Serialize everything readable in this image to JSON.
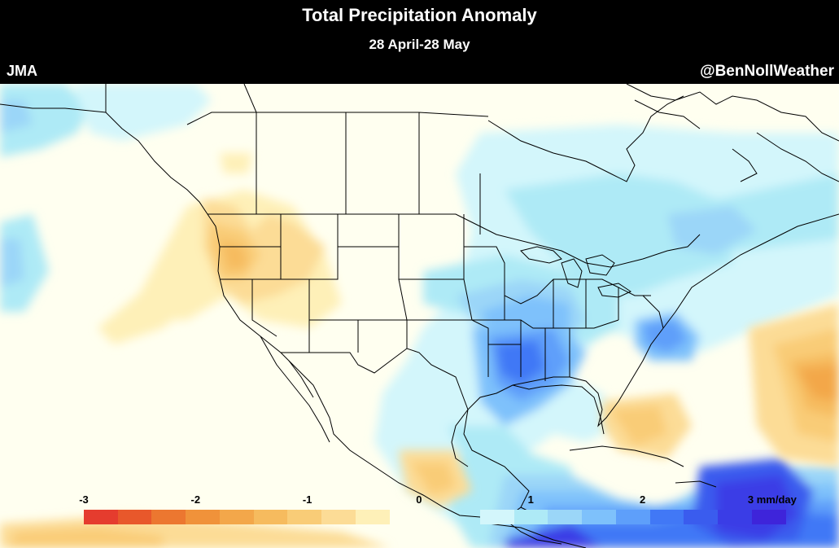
{
  "header": {
    "title": "Total Precipitation Anomaly",
    "subtitle": "28 April-28 May",
    "model": "JMA",
    "credit": "@BenNollWeather"
  },
  "colors": {
    "background": "#fffff0",
    "dry": [
      "#e53c2e",
      "#e8582b",
      "#ec7730",
      "#f0923a",
      "#f3a74a",
      "#f6bb5e",
      "#f9cc77",
      "#fcdc96",
      "#fef0b8"
    ],
    "wet": [
      "#d3f6fb",
      "#aeeaf6",
      "#9bd6f8",
      "#7ec1fb",
      "#5e9ffa",
      "#4178f6",
      "#3a5cee",
      "#3a3de6",
      "#3e24da"
    ],
    "outline": "#000000"
  },
  "legend": {
    "labels": [
      {
        "text": "-3",
        "value": -3
      },
      {
        "text": "-2",
        "value": -2
      },
      {
        "text": "-1",
        "value": -1
      },
      {
        "text": "0",
        "value": 0
      },
      {
        "text": "1",
        "value": 1
      },
      {
        "text": "2",
        "value": 2
      },
      {
        "text": "3 mm/day",
        "value": 3
      }
    ]
  }
}
